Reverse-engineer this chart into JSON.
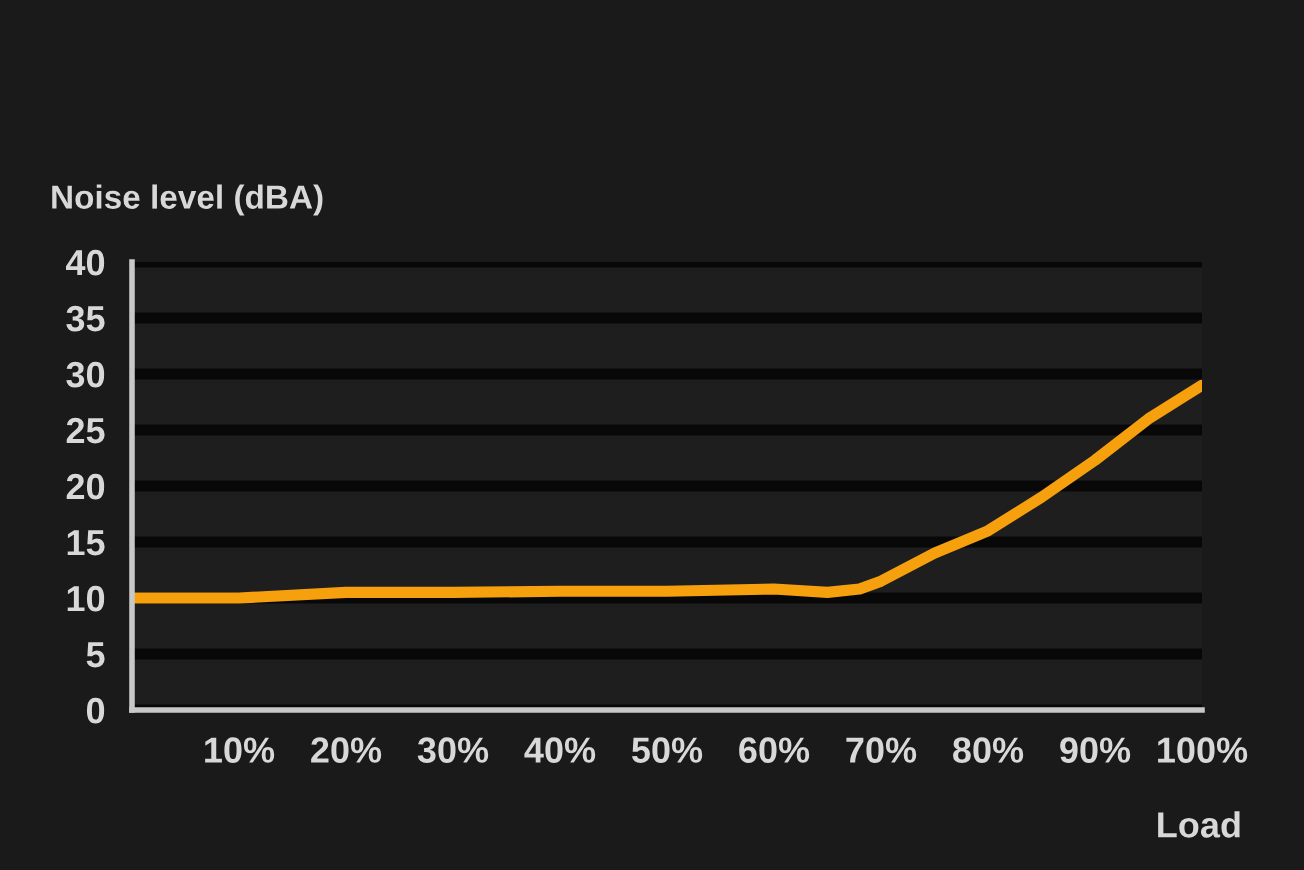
{
  "chart_data": {
    "type": "line",
    "ylabel": "Noise level (dBA)",
    "xlabel": "Load",
    "series": [
      {
        "color": "#f7a00e",
        "x": [
          0,
          10,
          20,
          30,
          40,
          50,
          60,
          65,
          68,
          70,
          75,
          80,
          85,
          90,
          95,
          100
        ],
        "values": [
          10,
          10,
          10.5,
          10.5,
          10.6,
          10.6,
          10.8,
          10.5,
          10.8,
          11.5,
          14,
          16,
          19,
          22.3,
          26,
          29
        ]
      }
    ],
    "xlim": [
      0,
      100
    ],
    "xticks": [
      {
        "value": 0,
        "label": null
      },
      {
        "value": 10,
        "label": "10%"
      },
      {
        "value": 20,
        "label": "20%"
      },
      {
        "value": 30,
        "label": "30%"
      },
      {
        "value": 40,
        "label": "40%"
      },
      {
        "value": 50,
        "label": "50%"
      },
      {
        "value": 60,
        "label": "60%"
      },
      {
        "value": 70,
        "label": "70%"
      },
      {
        "value": 80,
        "label": "80%"
      },
      {
        "value": 90,
        "label": "90%"
      },
      {
        "value": 100,
        "label": "100%"
      }
    ],
    "ylim": [
      0,
      40
    ],
    "yticks": [
      0,
      5,
      10,
      15,
      20,
      25,
      30,
      35,
      40
    ],
    "grid": "y",
    "marker": "none",
    "line_style": "solid"
  }
}
